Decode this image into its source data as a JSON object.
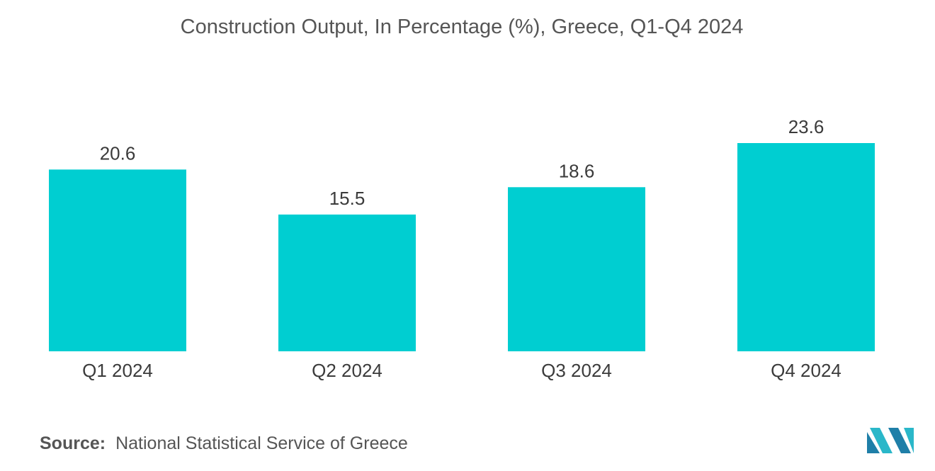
{
  "chart_data": {
    "type": "bar",
    "title": "Construction Output, In Percentage (%), Greece, Q1-Q4 2024",
    "categories": [
      "Q1 2024",
      "Q2 2024",
      "Q3 2024",
      "Q4 2024"
    ],
    "values": [
      20.6,
      15.5,
      18.6,
      23.6
    ],
    "data_labels": [
      "20.6",
      "15.5",
      "18.6",
      "23.6"
    ],
    "xlabel": "",
    "ylabel": "",
    "ylim": [
      0,
      23.6
    ],
    "grid": false,
    "legend": "none",
    "bar_color": "#00CED1"
  },
  "source": {
    "label": "Source:",
    "text": "National Statistical Service of Greece"
  },
  "logo": {
    "icon": "mordor-intelligence-logo-icon",
    "colors": [
      "#1f7fa8",
      "#2ab7c9"
    ]
  }
}
